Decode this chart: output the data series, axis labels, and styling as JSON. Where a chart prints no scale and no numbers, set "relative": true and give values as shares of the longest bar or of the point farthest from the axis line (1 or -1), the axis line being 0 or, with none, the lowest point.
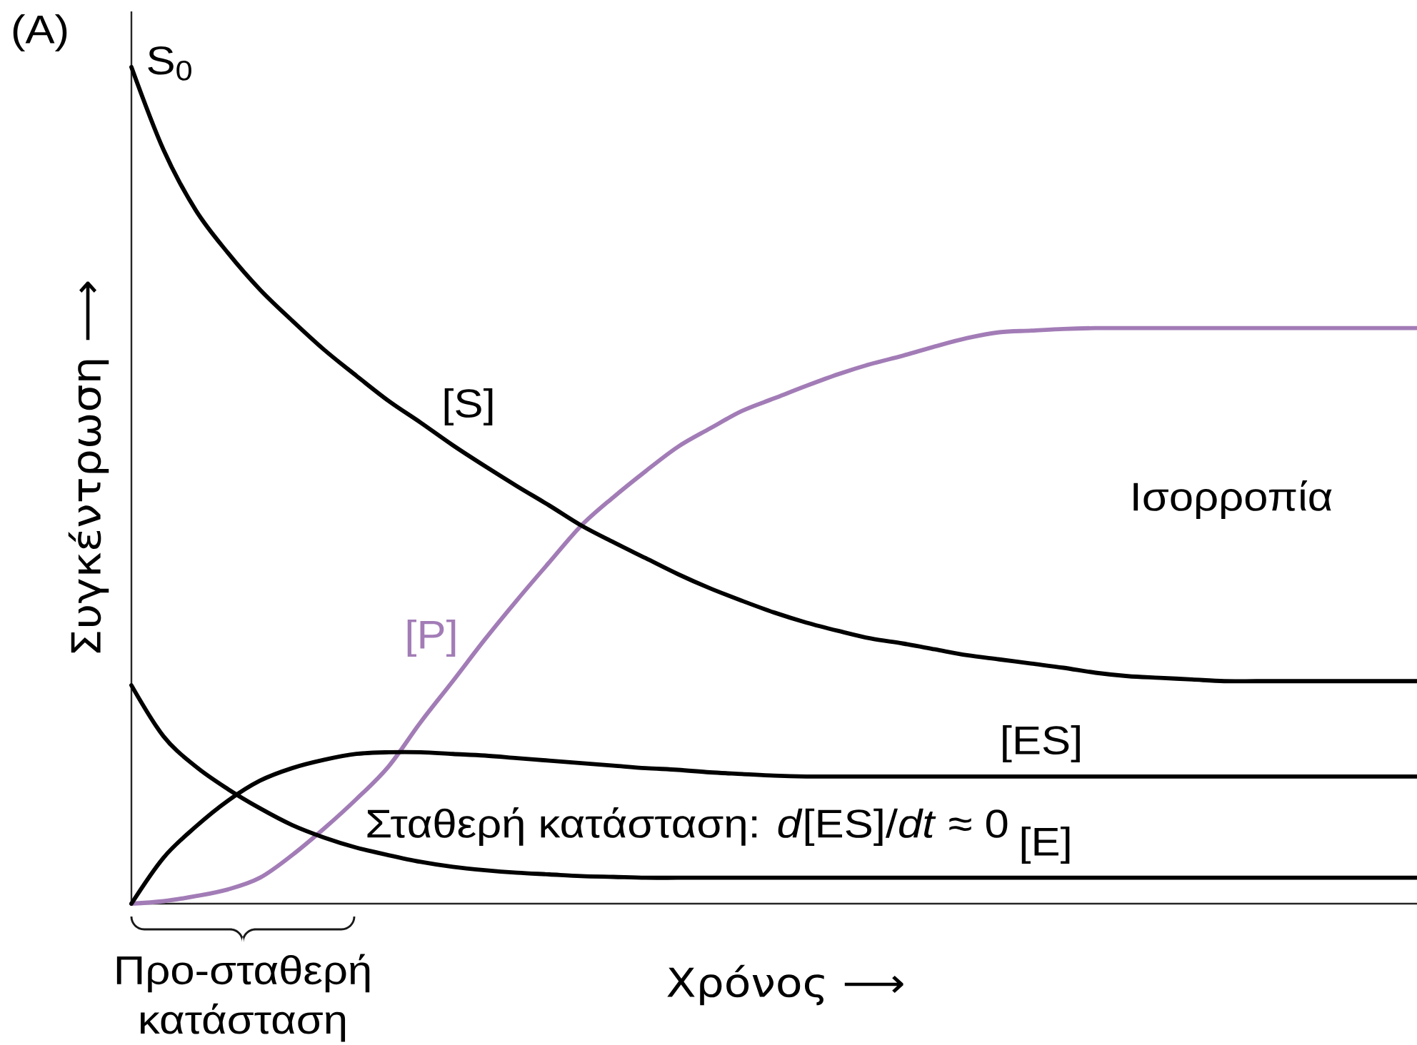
{
  "chart_data": {
    "type": "line",
    "title": "(A)",
    "xlabel": "Χρόνος ⟶",
    "ylabel": "Συγκέντρωση ⟶",
    "relative": true,
    "categories": [
      null,
      null,
      null,
      null,
      null,
      null,
      null,
      null,
      null,
      null,
      null,
      null,
      null,
      null,
      null,
      null,
      null,
      null,
      null,
      null,
      null,
      null,
      null,
      null,
      null,
      null,
      null,
      null,
      null,
      null,
      null,
      null,
      null,
      null,
      null,
      null,
      null,
      null,
      null,
      null,
      null
    ],
    "series": [
      {
        "name": "[P]",
        "color": "#a27cb6",
        "values": [
          0,
          0.003,
          0.009,
          0.017,
          0.031,
          0.058,
          0.09,
          0.125,
          0.164,
          0.217,
          0.266,
          0.316,
          0.363,
          0.408,
          0.452,
          0.486,
          0.517,
          0.546,
          0.568,
          0.589,
          0.604,
          0.619,
          0.633,
          0.645,
          0.655,
          0.666,
          0.676,
          0.683,
          0.685,
          0.687,
          0.688,
          0.688,
          0.688,
          0.688,
          0.688,
          0.688,
          0.688,
          0.688,
          0.688,
          0.688,
          0.688
        ]
      },
      {
        "name": "[S]",
        "color": "#000000",
        "values": [
          1.0,
          0.901,
          0.829,
          0.778,
          0.734,
          0.697,
          0.662,
          0.631,
          0.601,
          0.575,
          0.548,
          0.523,
          0.499,
          0.476,
          0.452,
          0.432,
          0.413,
          0.394,
          0.377,
          0.362,
          0.348,
          0.336,
          0.326,
          0.317,
          0.311,
          0.304,
          0.297,
          0.292,
          0.287,
          0.282,
          0.276,
          0.272,
          0.27,
          0.268,
          0.266,
          0.266,
          0.266,
          0.266,
          0.266,
          0.266,
          0.266
        ]
      },
      {
        "name": "[ES]",
        "color": "#000000",
        "values": [
          0,
          0.055,
          0.092,
          0.123,
          0.147,
          0.162,
          0.172,
          0.179,
          0.181,
          0.181,
          0.179,
          0.177,
          0.174,
          0.171,
          0.168,
          0.165,
          0.162,
          0.16,
          0.157,
          0.155,
          0.153,
          0.152,
          0.152,
          0.152,
          0.152,
          0.152,
          0.152,
          0.152,
          0.152,
          0.152,
          0.152,
          0.152,
          0.152,
          0.152,
          0.152,
          0.152,
          0.152,
          0.152,
          0.152,
          0.152,
          0.152
        ]
      },
      {
        "name": "[E]",
        "color": "#000000",
        "values": [
          0.261,
          0.2,
          0.164,
          0.137,
          0.114,
          0.094,
          0.079,
          0.067,
          0.058,
          0.05,
          0.044,
          0.04,
          0.037,
          0.035,
          0.033,
          0.032,
          0.031,
          0.031,
          0.031,
          0.031,
          0.031,
          0.031,
          0.031,
          0.031,
          0.031,
          0.031,
          0.031,
          0.031,
          0.031,
          0.031,
          0.031,
          0.031,
          0.031,
          0.031,
          0.031,
          0.031,
          0.031,
          0.031,
          0.031,
          0.031,
          0.031
        ]
      }
    ],
    "annotations": [
      "S$_{0}$",
      "Ισορροπία",
      "Σταθερή κατάσταση: *d*[ES]/*dt* ≈ 0",
      "Προ-σταθερή κατάσταση"
    ]
  }
}
